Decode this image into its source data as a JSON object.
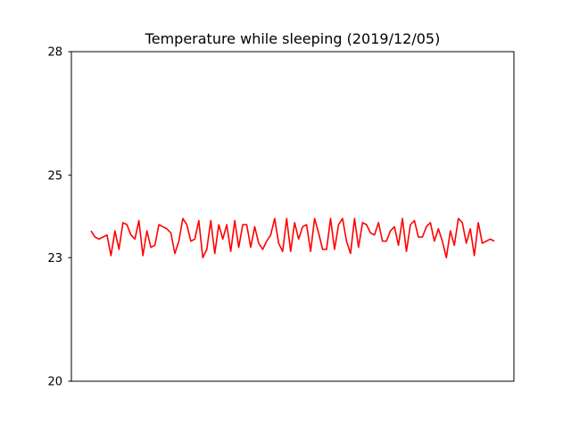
{
  "chart_data": {
    "type": "line",
    "title": "Temperature while sleeping (2019/12/05)",
    "xlabel": "",
    "ylabel": "",
    "ylim": [
      20,
      28
    ],
    "yticks": [
      20,
      23,
      25,
      28
    ],
    "xticks_shown": false,
    "grid": false,
    "legend": "none",
    "series": [
      {
        "color": "#ff0000",
        "values": [
          23.65,
          23.5,
          23.45,
          23.5,
          23.55,
          23.05,
          23.65,
          23.2,
          23.85,
          23.8,
          23.55,
          23.45,
          23.9,
          23.05,
          23.65,
          23.25,
          23.3,
          23.8,
          23.75,
          23.7,
          23.6,
          23.1,
          23.4,
          23.95,
          23.8,
          23.4,
          23.45,
          23.9,
          23.0,
          23.2,
          23.9,
          23.1,
          23.8,
          23.45,
          23.8,
          23.15,
          23.9,
          23.25,
          23.8,
          23.8,
          23.25,
          23.75,
          23.35,
          23.2,
          23.4,
          23.55,
          23.95,
          23.35,
          23.15,
          23.95,
          23.15,
          23.85,
          23.45,
          23.75,
          23.8,
          23.15,
          23.95,
          23.6,
          23.2,
          23.2,
          23.95,
          23.2,
          23.8,
          23.95,
          23.4,
          23.1,
          23.95,
          23.25,
          23.85,
          23.8,
          23.6,
          23.55,
          23.85,
          23.4,
          23.4,
          23.65,
          23.75,
          23.3,
          23.95,
          23.15,
          23.8,
          23.9,
          23.5,
          23.5,
          23.75,
          23.85,
          23.4,
          23.7,
          23.4,
          23.0,
          23.65,
          23.3,
          23.95,
          23.85,
          23.35,
          23.7,
          23.05,
          23.85,
          23.35,
          23.4,
          23.45,
          23.4
        ]
      }
    ]
  }
}
